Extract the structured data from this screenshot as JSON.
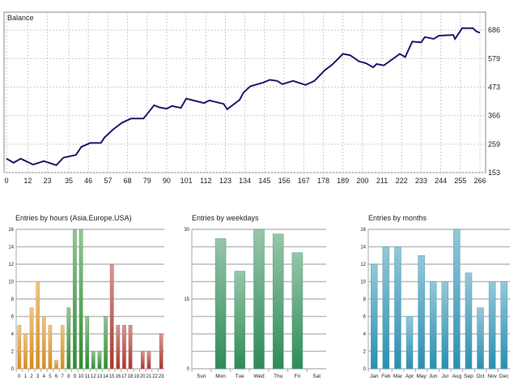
{
  "chart_data": [
    {
      "type": "line",
      "title": "Balance",
      "xlabel": "",
      "ylabel": "",
      "x_ticks": [
        0,
        12,
        23,
        35,
        46,
        57,
        68,
        79,
        90,
        101,
        112,
        123,
        134,
        145,
        156,
        167,
        178,
        189,
        200,
        211,
        222,
        233,
        244,
        255,
        266
      ],
      "y_ticks": [
        153,
        259,
        366,
        473,
        579,
        686
      ],
      "xlim": [
        0,
        266
      ],
      "ylim": [
        153,
        753
      ],
      "grid": true,
      "series": [
        {
          "name": "Balance",
          "color": "#1a1a6e",
          "x": [
            0,
            4,
            8,
            15,
            21,
            28,
            32,
            39,
            42,
            47,
            53,
            55,
            60,
            65,
            70,
            77,
            83,
            86,
            90,
            93,
            98,
            101,
            105,
            111,
            114,
            122,
            124,
            131,
            133,
            137,
            144,
            148,
            152,
            155,
            161,
            168,
            173,
            179,
            183,
            189,
            193,
            198,
            202,
            206,
            208,
            212,
            216,
            221,
            224,
            228,
            233,
            235,
            240,
            243,
            251,
            252,
            256,
            262,
            264,
            266
          ],
          "y": [
            205,
            190,
            205,
            183,
            196,
            181,
            209,
            219,
            249,
            264,
            264,
            284,
            315,
            340,
            355,
            355,
            405,
            397,
            392,
            402,
            395,
            430,
            423,
            413,
            423,
            410,
            390,
            425,
            451,
            476,
            489,
            500,
            496,
            484,
            496,
            481,
            496,
            537,
            557,
            597,
            592,
            569,
            562,
            547,
            559,
            554,
            573,
            597,
            585,
            643,
            640,
            660,
            653,
            665,
            668,
            653,
            693,
            693,
            681,
            676
          ]
        }
      ]
    },
    {
      "type": "bar",
      "title": "Entries by hours (Asia.Europe.USA)",
      "categories": [
        "0",
        "1",
        "2",
        "3",
        "4",
        "5",
        "6",
        "7",
        "8",
        "9",
        "10",
        "11",
        "12",
        "13",
        "14",
        "15",
        "16",
        "17",
        "18",
        "19",
        "20",
        "21",
        "22",
        "23"
      ],
      "values": [
        5,
        4,
        7,
        10,
        6,
        5,
        1,
        5,
        7,
        16,
        16,
        6,
        2,
        2,
        6,
        12,
        5,
        5,
        5,
        0,
        2,
        2,
        0,
        4
      ],
      "sessions": [
        "Asia",
        "Asia",
        "Asia",
        "Asia",
        "Asia",
        "Asia",
        "Asia",
        "Asia",
        "Europe",
        "Europe",
        "Europe",
        "Europe",
        "Europe",
        "Europe",
        "Europe",
        "USA",
        "USA",
        "USA",
        "USA",
        "USA",
        "USA",
        "USA",
        "USA",
        "USA"
      ],
      "session_colors": {
        "Asia": "#d68a1c",
        "Europe": "#2f8a32",
        "USA": "#a8362a"
      },
      "y_ticks": [
        0,
        2,
        4,
        6,
        8,
        10,
        12,
        14,
        16
      ],
      "ylim": [
        0,
        16
      ],
      "grid": true
    },
    {
      "type": "bar",
      "title": "Entries by weekdays",
      "categories": [
        "Sun",
        "Mon",
        "Tue",
        "Wed",
        "Thu",
        "Fri",
        "Sat"
      ],
      "values": [
        0,
        28,
        21,
        30,
        29,
        25,
        0
      ],
      "color": "#2e8b57",
      "y_ticks": [
        0,
        15,
        30
      ],
      "ylim": [
        0,
        30
      ],
      "grid": true
    },
    {
      "type": "bar",
      "title": "Entries by months",
      "categories": [
        "Jan",
        "Feb",
        "Mar",
        "Apr",
        "May",
        "Jun",
        "Jul",
        "Aug",
        "Sep",
        "Oct",
        "Nov",
        "Dec"
      ],
      "values": [
        12,
        14,
        14,
        6,
        13,
        10,
        10,
        16,
        11,
        7,
        10,
        10
      ],
      "color": "#2a8fb0",
      "y_ticks": [
        0,
        2,
        4,
        6,
        8,
        10,
        12,
        14,
        16
      ],
      "ylim": [
        0,
        16
      ],
      "grid": true
    }
  ]
}
